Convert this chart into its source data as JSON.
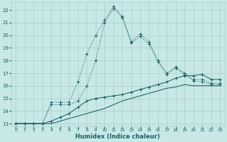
{
  "xlabel": "Humidex (Indice chaleur)",
  "bg_color": "#c8e8e8",
  "grid_color": "#aacccc",
  "line_color": "#1a6060",
  "xlim": [
    -0.5,
    23.5
  ],
  "ylim": [
    12.8,
    22.6
  ],
  "xticks": [
    0,
    1,
    2,
    3,
    4,
    5,
    6,
    7,
    8,
    9,
    10,
    11,
    12,
    13,
    14,
    15,
    16,
    17,
    18,
    19,
    20,
    21,
    22,
    23
  ],
  "yticks": [
    13,
    14,
    15,
    16,
    17,
    18,
    19,
    20,
    21,
    22
  ],
  "line1_y": [
    13.0,
    13.0,
    13.0,
    13.0,
    14.7,
    14.7,
    14.7,
    16.3,
    18.5,
    20.0,
    21.2,
    22.3,
    21.5,
    19.5,
    20.1,
    19.5,
    18.0,
    17.0,
    17.5,
    17.0,
    16.5,
    16.5,
    16.2,
    16.2
  ],
  "line2_y": [
    13.0,
    13.0,
    13.0,
    13.0,
    14.5,
    14.5,
    14.5,
    14.8,
    16.0,
    18.0,
    21.0,
    22.1,
    21.4,
    19.4,
    19.9,
    19.3,
    17.9,
    16.9,
    17.4,
    16.9,
    16.4,
    16.3,
    16.1,
    16.1
  ],
  "line3_y": [
    13.0,
    13.0,
    13.0,
    13.0,
    13.2,
    13.5,
    13.8,
    14.3,
    14.8,
    15.0,
    15.1,
    15.2,
    15.3,
    15.5,
    15.7,
    15.9,
    16.1,
    16.3,
    16.6,
    16.8,
    16.8,
    16.9,
    16.5,
    16.5
  ],
  "line4_y": [
    13.0,
    13.0,
    13.0,
    13.0,
    13.0,
    13.2,
    13.4,
    13.6,
    13.8,
    14.0,
    14.2,
    14.5,
    14.8,
    15.0,
    15.2,
    15.4,
    15.6,
    15.8,
    15.9,
    16.1,
    16.0,
    16.0,
    16.0,
    16.0
  ]
}
